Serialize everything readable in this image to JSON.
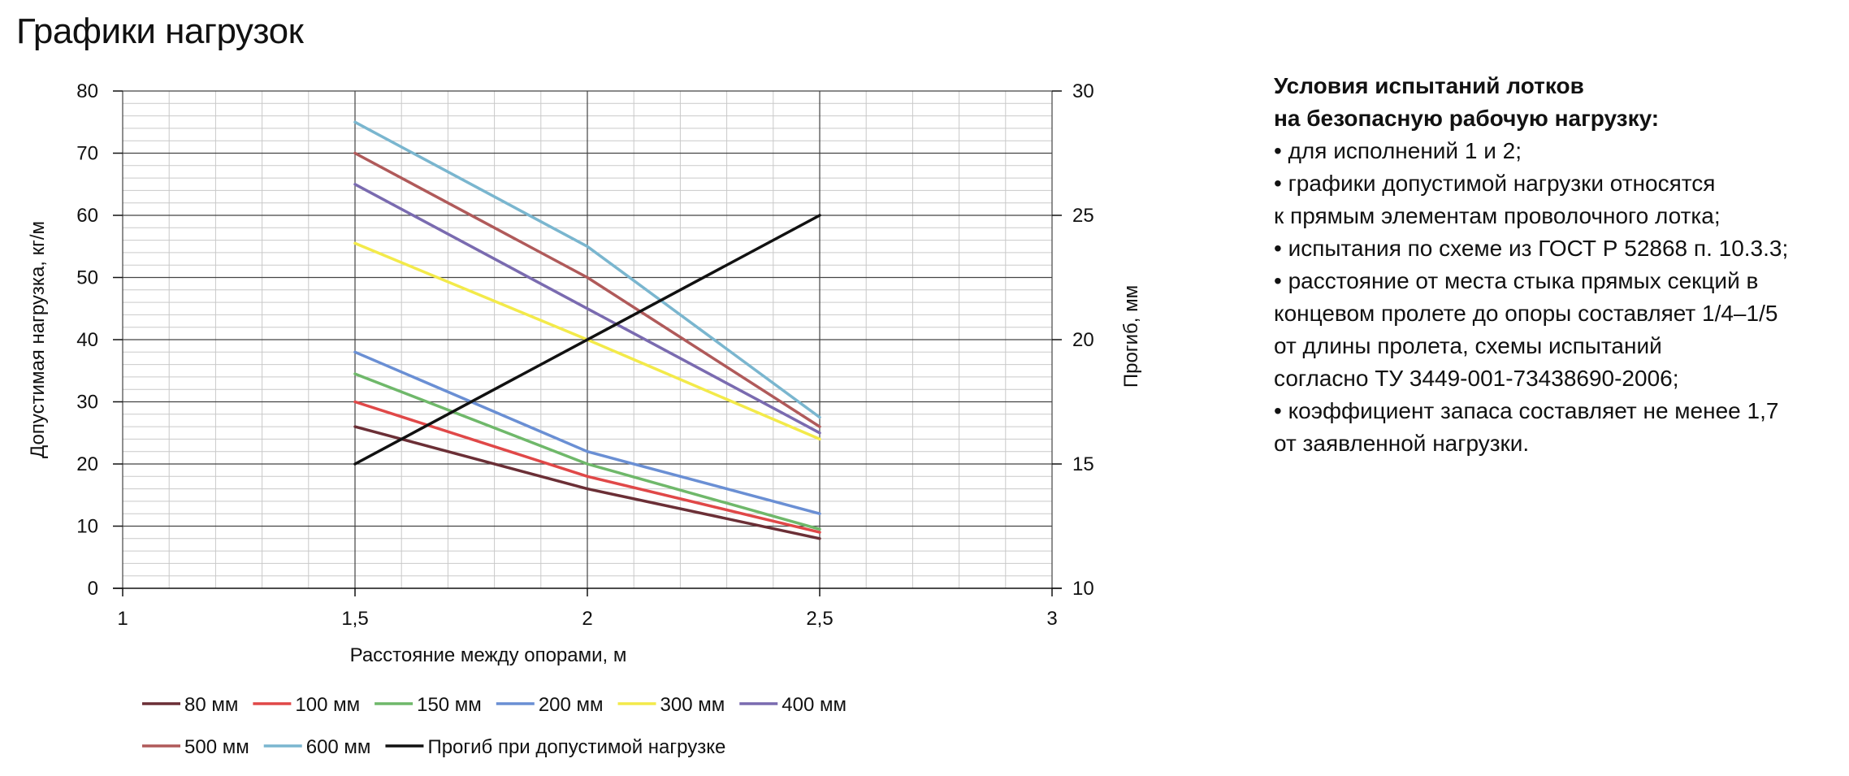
{
  "title": "Графики нагрузок",
  "conditions": {
    "heading": [
      "Условия испытаний лотков",
      "на безопасную рабочую нагрузку:"
    ],
    "lines": [
      "• для исполнений 1 и 2;",
      "• графики допустимой нагрузки относятся",
      "к прямым элементам проволочного лотка;",
      "• испытания по схеме из ГОСТ Р 52868 п. 10.3.3;",
      "• расстояние от места стыка прямых секций в",
      "концевом пролете до опоры составляет 1/4–1/5",
      "от длины пролета, схемы испытаний",
      "согласно ТУ 3449-001-73438690-2006;",
      "• коэффициент запаса составляет не менее 1,7",
      "от заявленной нагрузки."
    ]
  },
  "chart_data": {
    "type": "line",
    "xlabel": "Расстояние между опорами, м",
    "ylabel": "Допустимая нагрузка,  кг/м",
    "y2label": "Прогиб, мм",
    "xlim": [
      1,
      3
    ],
    "ylim": [
      0,
      80
    ],
    "y2lim": [
      10,
      30
    ],
    "xticks": [
      1,
      1.5,
      2,
      2.5,
      3
    ],
    "xtick_labels": [
      "1",
      "1,5",
      "2",
      "2,5",
      "3"
    ],
    "yticks": [
      0,
      10,
      20,
      30,
      40,
      50,
      60,
      70,
      80
    ],
    "ytick_labels": [
      "0",
      "10",
      "20",
      "30",
      "40",
      "50",
      "60",
      "70",
      "80"
    ],
    "y2ticks": [
      10,
      15,
      20,
      25,
      30
    ],
    "y2tick_labels": [
      "10",
      "15",
      "20",
      "25",
      "30"
    ],
    "grid": true,
    "legend_position": "bottom",
    "series": [
      {
        "name": "80 мм",
        "color": "#6b2f36",
        "axis": "left",
        "x": [
          1.5,
          2,
          2.5
        ],
        "values": [
          26,
          16,
          8
        ]
      },
      {
        "name": "100 мм",
        "color": "#e04848",
        "axis": "left",
        "x": [
          1.5,
          2,
          2.5
        ],
        "values": [
          30,
          18,
          9
        ]
      },
      {
        "name": "150 мм",
        "color": "#6fb86a",
        "axis": "left",
        "x": [
          1.5,
          2,
          2.5
        ],
        "values": [
          34.5,
          20,
          9.5
        ]
      },
      {
        "name": "200 мм",
        "color": "#6a8fd4",
        "axis": "left",
        "x": [
          1.5,
          2,
          2.5
        ],
        "values": [
          38,
          22,
          12
        ]
      },
      {
        "name": "300 мм",
        "color": "#f3ea4a",
        "axis": "left",
        "x": [
          1.5,
          2,
          2.5
        ],
        "values": [
          55.5,
          40,
          24
        ]
      },
      {
        "name": "400 мм",
        "color": "#7a6bb0",
        "axis": "left",
        "x": [
          1.5,
          2,
          2.5
        ],
        "values": [
          65,
          45,
          25
        ]
      },
      {
        "name": "500 мм",
        "color": "#b05a5a",
        "axis": "left",
        "x": [
          1.5,
          2,
          2.5
        ],
        "values": [
          70,
          50,
          26
        ]
      },
      {
        "name": "600 мм",
        "color": "#7ab6cf",
        "axis": "left",
        "x": [
          1.5,
          2,
          2.5
        ],
        "values": [
          75,
          55,
          27.5
        ]
      },
      {
        "name": "Прогиб при допустимой нагрузке",
        "color": "#111111",
        "axis": "right",
        "x": [
          1.5,
          2.5
        ],
        "values": [
          15,
          25
        ]
      }
    ]
  }
}
